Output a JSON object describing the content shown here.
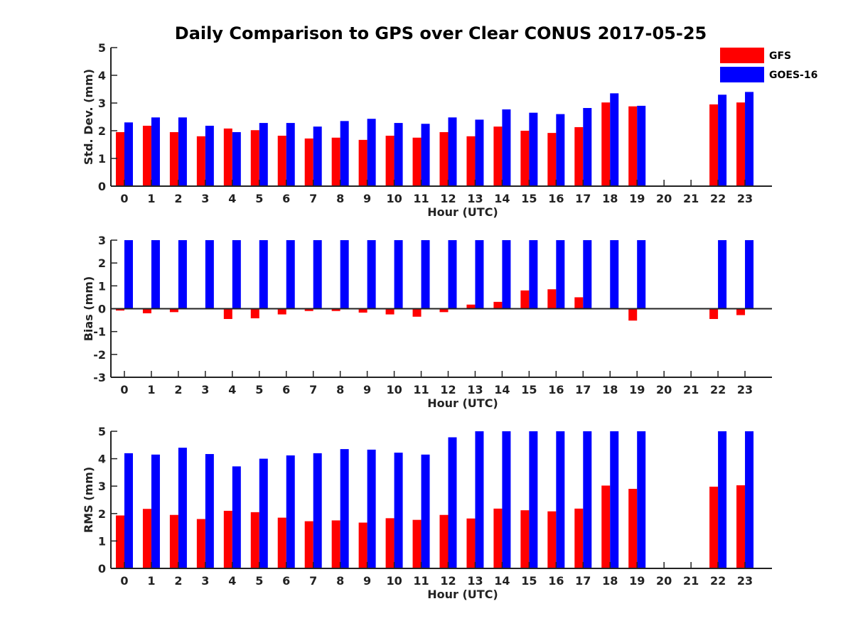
{
  "figure": {
    "title": "Daily Comparison to GPS over Clear CONUS 2017-05-25"
  },
  "legend": {
    "placement": "top-right",
    "entries": [
      {
        "name": "GFS",
        "color": "#ff0000"
      },
      {
        "name": "GOES-16",
        "color": "#0000ff"
      }
    ]
  },
  "chart_data": [
    {
      "type": "bar",
      "ylabel": "Std. Dev. (mm)",
      "xlabel": "Hour (UTC)",
      "ylim": [
        0,
        5
      ],
      "yticks": [
        0,
        1,
        2,
        3,
        4,
        5
      ],
      "categories": [
        "0",
        "1",
        "2",
        "3",
        "4",
        "5",
        "6",
        "7",
        "8",
        "9",
        "10",
        "11",
        "12",
        "13",
        "14",
        "15",
        "16",
        "17",
        "18",
        "19",
        "20",
        "21",
        "22",
        "23"
      ],
      "series": [
        {
          "name": "GFS",
          "color": "#ff0000",
          "values": [
            1.95,
            2.18,
            1.95,
            1.8,
            2.08,
            2.02,
            1.82,
            1.72,
            1.75,
            1.67,
            1.82,
            1.75,
            1.95,
            1.8,
            2.15,
            2.0,
            1.92,
            2.13,
            3.02,
            2.88,
            null,
            null,
            2.95,
            3.02
          ]
        },
        {
          "name": "GOES-16",
          "color": "#0000ff",
          "values": [
            2.3,
            2.48,
            2.48,
            2.18,
            1.95,
            2.28,
            2.28,
            2.15,
            2.35,
            2.43,
            2.28,
            2.25,
            2.48,
            2.4,
            2.77,
            2.65,
            2.6,
            2.82,
            3.35,
            2.9,
            null,
            null,
            3.3,
            3.4
          ]
        }
      ]
    },
    {
      "type": "bar",
      "ylabel": "Bias (mm)",
      "xlabel": "Hour (UTC)",
      "ylim": [
        -3,
        3
      ],
      "yticks": [
        -3,
        -2,
        -1,
        0,
        1,
        2,
        3
      ],
      "categories": [
        "0",
        "1",
        "2",
        "3",
        "4",
        "5",
        "6",
        "7",
        "8",
        "9",
        "10",
        "11",
        "12",
        "13",
        "14",
        "15",
        "16",
        "17",
        "18",
        "19",
        "20",
        "21",
        "22",
        "23"
      ],
      "series": [
        {
          "name": "GFS",
          "color": "#ff0000",
          "values": [
            -0.08,
            -0.2,
            -0.15,
            0.0,
            -0.45,
            -0.42,
            -0.25,
            -0.1,
            -0.1,
            -0.17,
            -0.25,
            -0.35,
            -0.15,
            0.18,
            0.3,
            0.8,
            0.85,
            0.5,
            0.0,
            -0.52,
            null,
            null,
            -0.45,
            -0.28
          ]
        },
        {
          "name": "GOES-16",
          "color": "#0000ff",
          "values": [
            3,
            3,
            3,
            3,
            3,
            3,
            3,
            3,
            3,
            3,
            3,
            3,
            3,
            3,
            3,
            3,
            3,
            3,
            3,
            3,
            null,
            null,
            3,
            3
          ]
        }
      ]
    },
    {
      "type": "bar",
      "ylabel": "RMS (mm)",
      "xlabel": "Hour (UTC)",
      "ylim": [
        0,
        5
      ],
      "yticks": [
        0,
        1,
        2,
        3,
        4,
        5
      ],
      "categories": [
        "0",
        "1",
        "2",
        "3",
        "4",
        "5",
        "6",
        "7",
        "8",
        "9",
        "10",
        "11",
        "12",
        "13",
        "14",
        "15",
        "16",
        "17",
        "18",
        "19",
        "20",
        "21",
        "22",
        "23"
      ],
      "series": [
        {
          "name": "GFS",
          "color": "#ff0000",
          "values": [
            1.93,
            2.17,
            1.95,
            1.8,
            2.1,
            2.05,
            1.85,
            1.72,
            1.75,
            1.67,
            1.83,
            1.77,
            1.95,
            1.82,
            2.18,
            2.12,
            2.08,
            2.18,
            3.02,
            2.9,
            null,
            null,
            2.98,
            3.03
          ]
        },
        {
          "name": "GOES-16",
          "color": "#0000ff",
          "values": [
            4.2,
            4.15,
            4.4,
            4.17,
            3.72,
            4.0,
            4.12,
            4.2,
            4.35,
            4.33,
            4.22,
            4.15,
            4.78,
            5,
            5,
            5,
            5,
            5,
            5,
            5,
            null,
            null,
            5,
            5
          ]
        }
      ]
    }
  ]
}
